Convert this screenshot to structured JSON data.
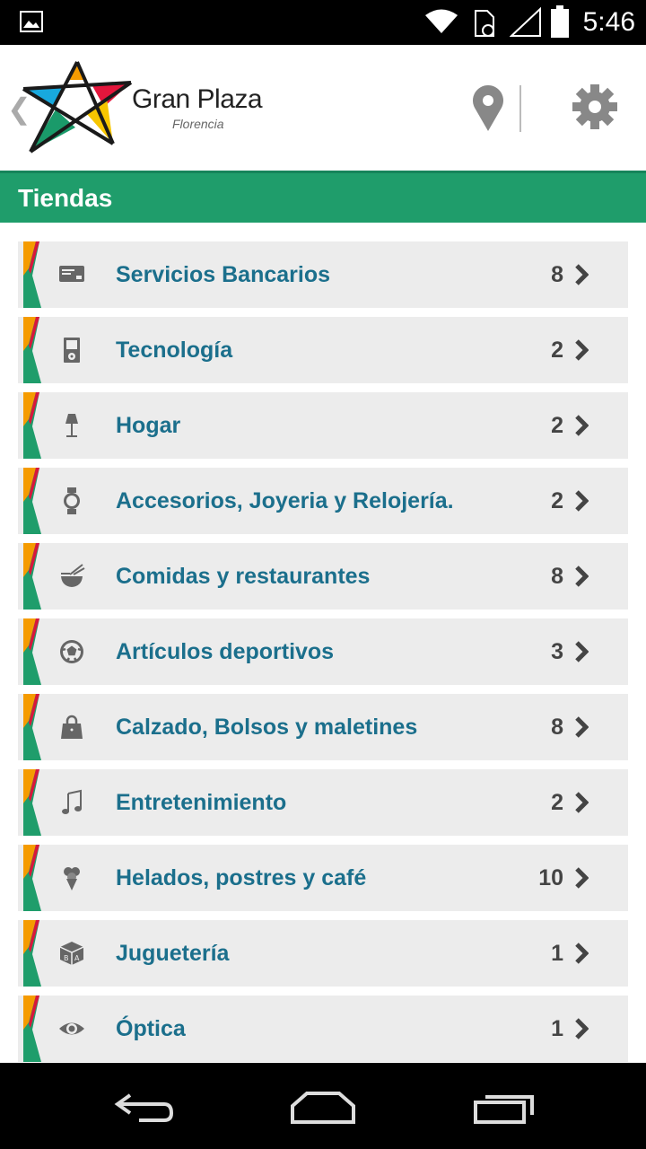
{
  "status_bar": {
    "time": "5:46"
  },
  "header": {
    "brand": "Gran Plaza",
    "subtitle": "Florencia"
  },
  "section": {
    "title": "Tiendas"
  },
  "categories": [
    {
      "label": "Servicios Bancarios",
      "count": "8",
      "icon": "credit-card-icon"
    },
    {
      "label": "Tecnología",
      "count": "2",
      "icon": "ipod-icon"
    },
    {
      "label": "Hogar",
      "count": "2",
      "icon": "lamp-icon"
    },
    {
      "label": "Accesorios, Joyeria y Relojería.",
      "count": "2",
      "icon": "watch-icon"
    },
    {
      "label": "Comidas y restaurantes",
      "count": "8",
      "icon": "bowl-icon"
    },
    {
      "label": "Artículos deportivos",
      "count": "3",
      "icon": "soccer-ball-icon"
    },
    {
      "label": "Calzado, Bolsos y maletines",
      "count": "8",
      "icon": "handbag-icon"
    },
    {
      "label": "Entretenimiento",
      "count": "2",
      "icon": "music-note-icon"
    },
    {
      "label": "Helados, postres y café",
      "count": "10",
      "icon": "ice-cream-icon"
    },
    {
      "label": "Juguetería",
      "count": "1",
      "icon": "toy-blocks-icon"
    },
    {
      "label": "Óptica",
      "count": "1",
      "icon": "eye-icon"
    }
  ],
  "colors": {
    "header_green": "#1f9d6b",
    "label_blue": "#1b6f8c",
    "row_bg": "#ececec"
  }
}
